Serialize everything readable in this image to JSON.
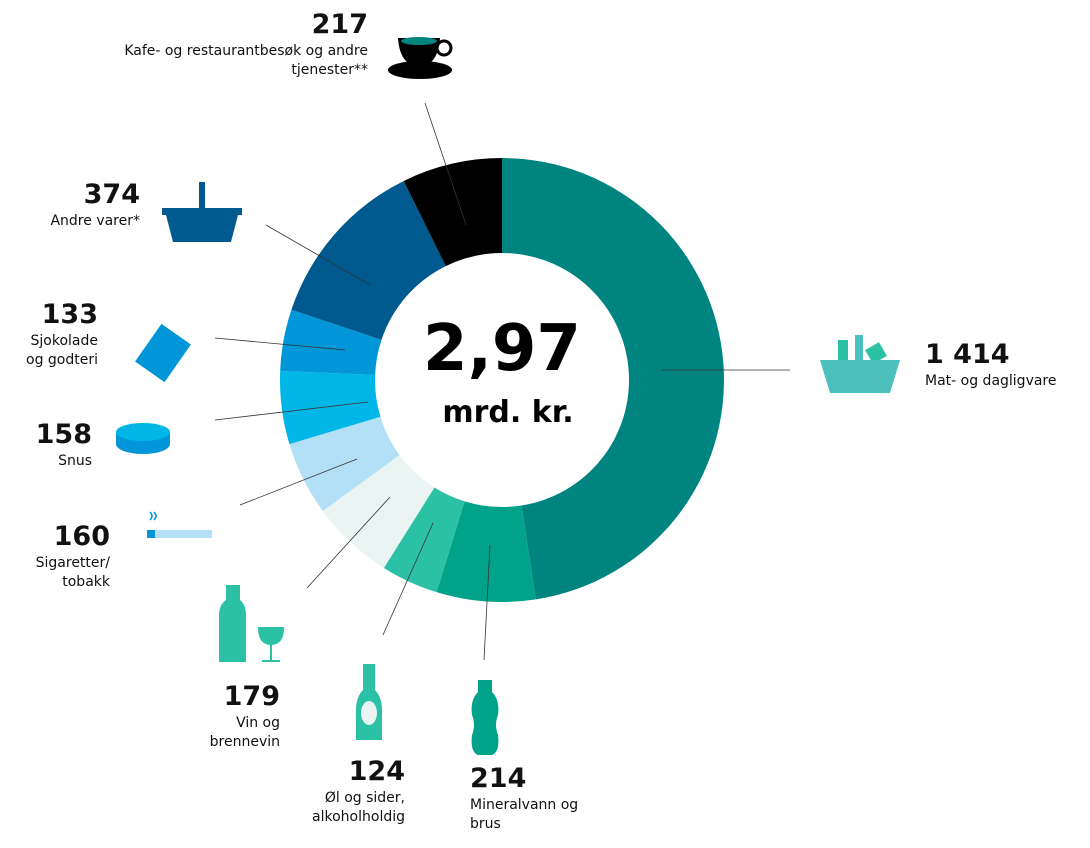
{
  "chart_data": {
    "type": "donut",
    "center_label": "2,97",
    "center_unit": "mrd. kr.",
    "categories": [
      "Mat- og dagligvare",
      "Mineralvann og brus",
      "Øl og sider, alkoholholdig",
      "Vin og brennevin",
      "Sigaretter/ tobakk",
      "Snus",
      "Sjokolade og godteri",
      "Andre varer*",
      "Kafe- og restaurantbesøk og andre tjenester**"
    ],
    "values": [
      1414,
      214,
      124,
      179,
      160,
      158,
      133,
      374,
      217
    ],
    "value_labels": [
      "1 414",
      "214",
      "124",
      "179",
      "160",
      "158",
      "133",
      "374",
      "217"
    ],
    "colors": [
      "#00847f",
      "#00a28a",
      "#2ac1a5",
      "#e9f4f3",
      "#b3e0f6",
      "#00b6e6",
      "#0096d8",
      "#005a8f",
      "#000000"
    ]
  }
}
